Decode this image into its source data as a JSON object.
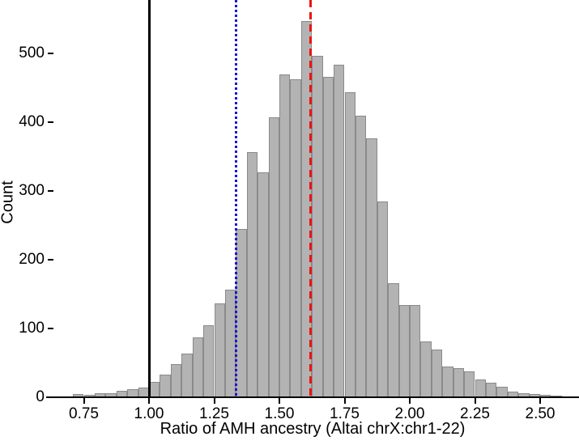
{
  "chart_data": {
    "type": "bar",
    "subtype": "histogram",
    "title": "",
    "xlabel": "Ratio of AMH ancestry (Altai chrX:chr1-22)",
    "ylabel": "Count",
    "xlim": [
      0.615,
      2.65
    ],
    "ylim": [
      0,
      578
    ],
    "grid": false,
    "legend": "none",
    "bin_start": 0.708333,
    "bin_width": 0.0416667,
    "counts": [
      5,
      3,
      6,
      6,
      9,
      12,
      14,
      22,
      33,
      48,
      64,
      87,
      105,
      136,
      156,
      245,
      356,
      327,
      407,
      470,
      462,
      547,
      497,
      466,
      484,
      443,
      409,
      377,
      285,
      166,
      134,
      134,
      81,
      70,
      45,
      42,
      38,
      26,
      21,
      15,
      8,
      6,
      5,
      3,
      2
    ],
    "x_ticks": [
      {
        "label": "0.75",
        "value": 0.75
      },
      {
        "label": "1.00",
        "value": 1.0
      },
      {
        "label": "1.25",
        "value": 1.25
      },
      {
        "label": "1.50",
        "value": 1.5
      },
      {
        "label": "1.75",
        "value": 1.75
      },
      {
        "label": "2.00",
        "value": 2.0
      },
      {
        "label": "2.25",
        "value": 2.25
      },
      {
        "label": "2.50",
        "value": 2.5
      }
    ],
    "y_ticks": [
      {
        "label": "0",
        "value": 0
      },
      {
        "label": "100",
        "value": 100
      },
      {
        "label": "200",
        "value": 200
      },
      {
        "label": "300",
        "value": 300
      },
      {
        "label": "400",
        "value": 400
      },
      {
        "label": "500",
        "value": 500
      }
    ],
    "reference_lines": [
      {
        "name": "black-solid-line",
        "value": 1.0,
        "style": "solid",
        "color": "#000000"
      },
      {
        "name": "blue-dotted-line",
        "value": 1.335,
        "style": "dotted",
        "color": "#1717d2"
      },
      {
        "name": "red-dashed-line",
        "value": 1.62,
        "style": "dashed",
        "color": "#ee1111"
      }
    ],
    "colors": {
      "bar_fill": "#b3b3b3",
      "bar_border": "#8a8a8a",
      "axis": "#000000",
      "background": "#ffffff"
    }
  }
}
